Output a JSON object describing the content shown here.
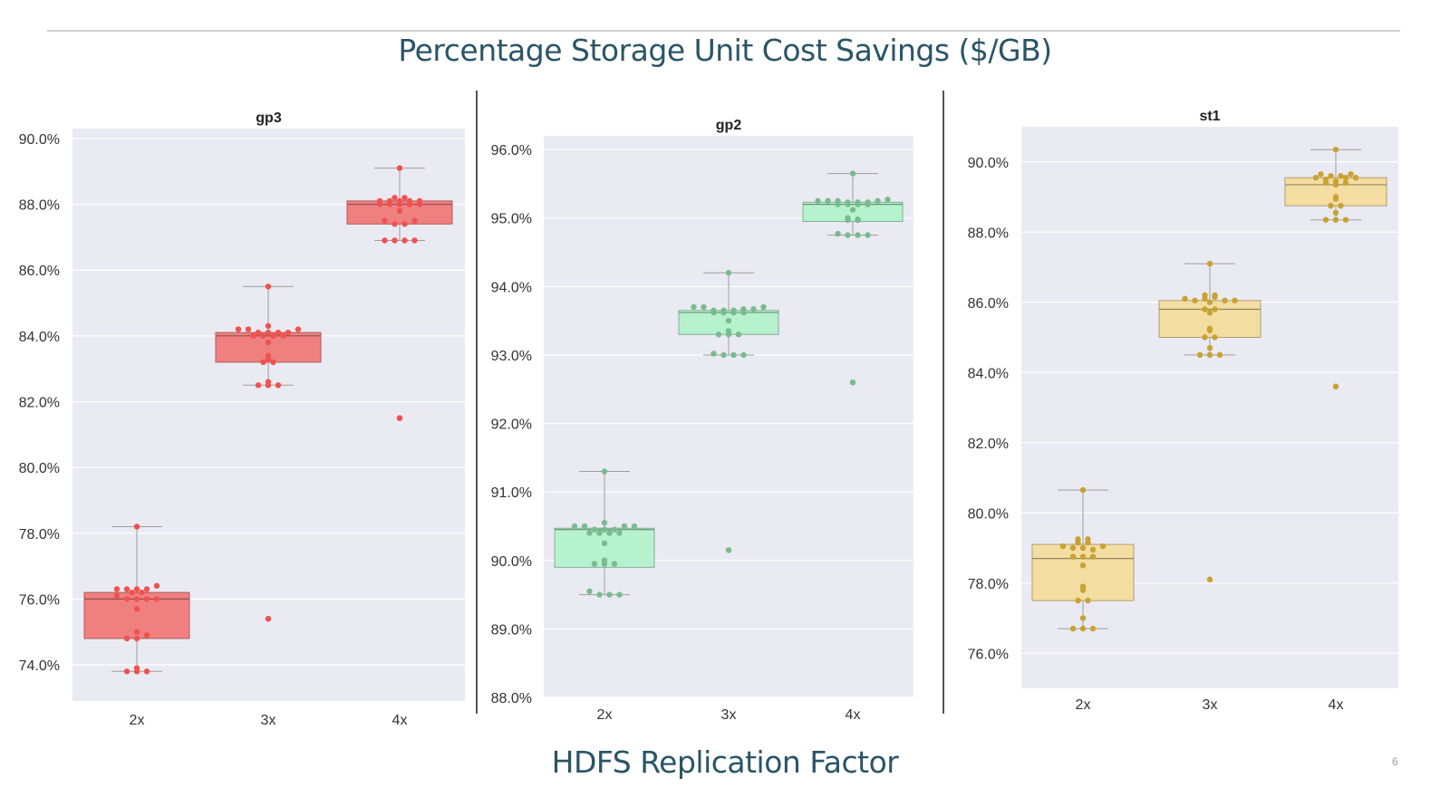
{
  "title": "Percentage Storage Unit Cost Savings ($/GB)",
  "xlabel": "HDFS Replication Factor",
  "page_number": "6",
  "chart_data": [
    {
      "type": "box",
      "title": "gp3",
      "categories": [
        "2x",
        "3x",
        "4x"
      ],
      "ylim": [
        72.9,
        90.3
      ],
      "yticks": [
        74,
        76,
        78,
        80,
        82,
        84,
        86,
        88,
        90
      ],
      "tick_labels": [
        "74.0%",
        "76.0%",
        "78.0%",
        "80.0%",
        "82.0%",
        "84.0%",
        "86.0%",
        "88.0%",
        "90.0%"
      ],
      "color": "#f08080",
      "point_color": "#f0524f",
      "boxes": [
        {
          "category": "2x",
          "whisker_low": 73.8,
          "q1": 74.8,
          "median": 76.0,
          "q3": 76.2,
          "whisker_high": 78.2,
          "outliers": []
        },
        {
          "category": "3x",
          "whisker_low": 82.5,
          "q1": 83.2,
          "median": 84.0,
          "q3": 84.1,
          "whisker_high": 85.5,
          "outliers": [
            75.4
          ]
        },
        {
          "category": "4x",
          "whisker_low": 86.9,
          "q1": 87.4,
          "median": 88.0,
          "q3": 88.1,
          "whisker_high": 89.1,
          "outliers": [
            81.5
          ]
        }
      ],
      "points": [
        [
          76.3,
          76.3,
          76.2,
          76.1,
          76.0,
          76.0,
          76.0,
          76.0,
          76.2,
          76.3,
          76.3,
          76.4,
          75.7,
          75.0,
          74.8,
          74.8,
          74.9,
          73.9,
          73.8,
          73.8,
          73.8,
          78.2
        ],
        [
          84.2,
          84.2,
          84.1,
          84.1,
          84.0,
          84.0,
          84.0,
          84.0,
          84.1,
          84.1,
          84.2,
          84.3,
          83.8,
          83.4,
          83.2,
          83.2,
          83.3,
          82.6,
          82.5,
          82.5,
          82.5,
          85.5,
          75.4
        ],
        [
          88.1,
          88.1,
          88.1,
          88.0,
          88.0,
          88.0,
          88.0,
          88.0,
          88.1,
          88.1,
          88.2,
          88.2,
          87.8,
          87.5,
          87.4,
          87.4,
          87.5,
          86.9,
          86.9,
          86.9,
          86.9,
          89.1,
          81.5
        ]
      ]
    },
    {
      "type": "box",
      "title": "gp2",
      "categories": [
        "2x",
        "3x",
        "4x"
      ],
      "ylim": [
        88.0,
        96.2
      ],
      "yticks": [
        88,
        89,
        90,
        91,
        92,
        93,
        94,
        95,
        96
      ],
      "tick_labels": [
        "88.0%",
        "89.0%",
        "90.0%",
        "91.0%",
        "92.0%",
        "93.0%",
        "94.0%",
        "95.0%",
        "96.0%"
      ],
      "color": "#b7f2cf",
      "point_color": "#78bb8f",
      "boxes": [
        {
          "category": "2x",
          "whisker_low": 89.5,
          "q1": 89.9,
          "median": 90.45,
          "q3": 90.47,
          "whisker_high": 91.3,
          "outliers": []
        },
        {
          "category": "3x",
          "whisker_low": 93.0,
          "q1": 93.3,
          "median": 93.62,
          "q3": 93.65,
          "whisker_high": 94.2,
          "outliers": [
            90.15
          ]
        },
        {
          "category": "4x",
          "whisker_low": 94.75,
          "q1": 94.95,
          "median": 95.2,
          "q3": 95.23,
          "whisker_high": 95.65,
          "outliers": [
            92.6
          ]
        }
      ],
      "points": [
        [
          90.5,
          90.5,
          90.45,
          90.45,
          90.4,
          90.4,
          90.4,
          90.4,
          90.45,
          90.5,
          90.5,
          90.55,
          90.25,
          90.0,
          89.95,
          89.95,
          89.95,
          89.55,
          89.5,
          89.5,
          89.5,
          91.3
        ],
        [
          93.7,
          93.7,
          93.65,
          93.65,
          93.62,
          93.62,
          93.62,
          93.62,
          93.65,
          93.67,
          93.67,
          93.7,
          93.5,
          93.35,
          93.3,
          93.3,
          93.3,
          93.02,
          93.0,
          93.0,
          93.0,
          94.2,
          90.15
        ],
        [
          95.25,
          95.25,
          95.25,
          95.23,
          95.2,
          95.2,
          95.2,
          95.2,
          95.23,
          95.23,
          95.25,
          95.27,
          95.12,
          95.0,
          94.97,
          94.97,
          94.98,
          94.77,
          94.75,
          94.75,
          94.75,
          95.65,
          92.6
        ]
      ]
    },
    {
      "type": "box",
      "title": "st1",
      "categories": [
        "2x",
        "3x",
        "4x"
      ],
      "ylim": [
        75.0,
        91.0
      ],
      "yticks": [
        76,
        78,
        80,
        82,
        84,
        86,
        88,
        90
      ],
      "tick_labels": [
        "76.0%",
        "78.0%",
        "80.0%",
        "82.0%",
        "84.0%",
        "86.0%",
        "88.0%",
        "90.0%"
      ],
      "color": "#f3dda0",
      "point_color": "#c9a233",
      "boxes": [
        {
          "category": "2x",
          "whisker_low": 76.7,
          "q1": 77.5,
          "median": 78.7,
          "q3": 79.1,
          "whisker_high": 80.65,
          "outliers": []
        },
        {
          "category": "3x",
          "whisker_low": 84.5,
          "q1": 85.0,
          "median": 85.8,
          "q3": 86.05,
          "whisker_high": 87.1,
          "outliers": [
            78.1
          ]
        },
        {
          "category": "4x",
          "whisker_low": 88.35,
          "q1": 88.75,
          "median": 89.35,
          "q3": 89.55,
          "whisker_high": 90.35,
          "outliers": [
            83.6
          ]
        }
      ],
      "points": [
        [
          79.25,
          79.15,
          79.05,
          79.0,
          79.0,
          78.95,
          79.05,
          79.15,
          79.25,
          78.75,
          78.75,
          78.75,
          78.5,
          77.9,
          77.8,
          77.5,
          77.5,
          77.0,
          76.7,
          76.7,
          76.7,
          80.65
        ],
        [
          86.2,
          86.1,
          86.0,
          86.05,
          86.1,
          86.15,
          86.2,
          86.05,
          86.05,
          85.8,
          85.8,
          85.7,
          85.2,
          85.25,
          85.0,
          85.0,
          84.7,
          84.5,
          84.5,
          84.5,
          87.1,
          78.1
        ],
        [
          89.65,
          89.6,
          89.55,
          89.5,
          89.45,
          89.4,
          89.35,
          89.4,
          89.55,
          89.6,
          89.65,
          89.55,
          89.0,
          88.95,
          88.75,
          88.75,
          88.55,
          88.35,
          88.35,
          88.35,
          90.35,
          83.6
        ]
      ]
    }
  ]
}
